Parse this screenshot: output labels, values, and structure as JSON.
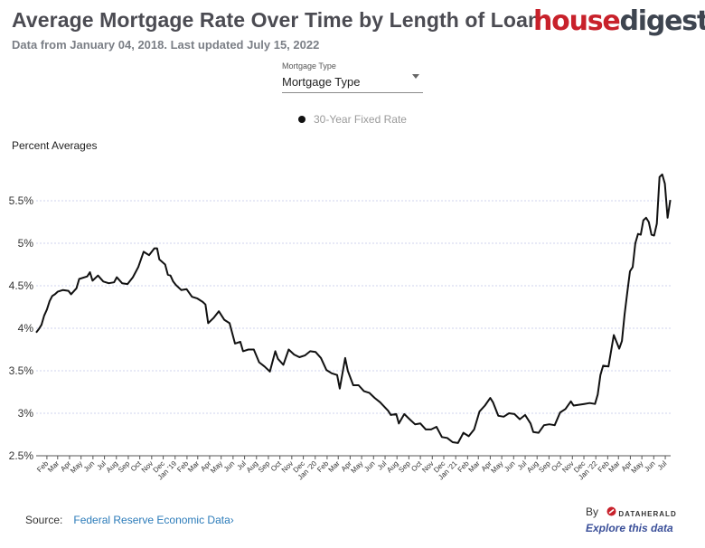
{
  "header": {
    "title": "Average Mortgage Rate Over Time by Length of Loan",
    "subtitle": "Data from January 04, 2018. Last updated July 15, 2022"
  },
  "brand": {
    "part1": "house",
    "part2": "digest",
    "colors": {
      "red": "#c8212b",
      "dark": "#3e4550"
    }
  },
  "dropdown": {
    "label": "Mortgage Type",
    "value": "Mortgage Type"
  },
  "footer": {
    "source_label": "Source:",
    "source_link": "Federal Reserve Economic Data",
    "source_chevron": "›",
    "by_label": "By",
    "by_brand": "DATAHERALD",
    "explore_link": "Explore this data"
  },
  "chart_data": {
    "type": "line",
    "title": "",
    "xlabel": "",
    "ylabel": "Percent Averages",
    "ylim": [
      2.5,
      5.75
    ],
    "yticks": [
      2.5,
      3,
      3.5,
      4,
      4.5,
      5,
      5.5
    ],
    "ytick_labels": [
      "2.5%",
      "3%",
      "3.5%",
      "4%",
      "4.5%",
      "5%",
      "5.5%"
    ],
    "grid": "horizontal dotted",
    "legend_position": "top-center",
    "xlim": [
      "2018-01-04",
      "2022-07-15"
    ],
    "x_tick_dates": [
      "2018-02-01",
      "2018-03-01",
      "2018-04-01",
      "2018-05-01",
      "2018-06-01",
      "2018-07-01",
      "2018-08-01",
      "2018-09-01",
      "2018-10-01",
      "2018-11-01",
      "2018-12-01",
      "2019-01-01",
      "2019-02-01",
      "2019-03-01",
      "2019-04-01",
      "2019-05-01",
      "2019-06-01",
      "2019-07-01",
      "2019-08-01",
      "2019-09-01",
      "2019-10-01",
      "2019-11-01",
      "2019-12-01",
      "2020-01-01",
      "2020-02-01",
      "2020-03-01",
      "2020-04-01",
      "2020-05-01",
      "2020-06-01",
      "2020-07-01",
      "2020-08-01",
      "2020-09-01",
      "2020-10-01",
      "2020-11-01",
      "2020-12-01",
      "2021-01-01",
      "2021-02-01",
      "2021-03-01",
      "2021-04-01",
      "2021-05-01",
      "2021-06-01",
      "2021-07-01",
      "2021-08-01",
      "2021-09-01",
      "2021-10-01",
      "2021-11-01",
      "2021-12-01",
      "2022-01-01",
      "2022-02-01",
      "2022-03-01",
      "2022-04-01",
      "2022-05-01",
      "2022-06-01",
      "2022-07-01"
    ],
    "x_tick_labels": [
      "Feb",
      "Mar",
      "Apr",
      "May",
      "Jun",
      "Jul",
      "Aug",
      "Sep",
      "Oct",
      "Nov",
      "Dec",
      "Jan '19",
      "Feb",
      "Mar",
      "Apr",
      "May",
      "Jun",
      "Jul",
      "Aug",
      "Sep",
      "Oct",
      "Nov",
      "Dec",
      "Jan '20",
      "Feb",
      "Mar",
      "Apr",
      "May",
      "Jun",
      "Jul",
      "Aug",
      "Sep",
      "Oct",
      "Nov",
      "Dec",
      "Jan '21",
      "Feb",
      "Mar",
      "Apr",
      "May",
      "Jun",
      "Jul",
      "Aug",
      "Sep",
      "Oct",
      "Nov",
      "Dec",
      "Jan '22",
      "Feb",
      "Mar",
      "Apr",
      "May",
      "Jun",
      "Jul"
    ],
    "series": [
      {
        "name": "30-Year Fixed Rate",
        "color": "#111111",
        "points": [
          [
            "2018-01-04",
            3.95
          ],
          [
            "2018-01-11",
            3.99
          ],
          [
            "2018-01-18",
            4.04
          ],
          [
            "2018-01-25",
            4.15
          ],
          [
            "2018-02-01",
            4.22
          ],
          [
            "2018-02-08",
            4.32
          ],
          [
            "2018-02-15",
            4.38
          ],
          [
            "2018-02-22",
            4.4
          ],
          [
            "2018-03-01",
            4.43
          ],
          [
            "2018-03-15",
            4.45
          ],
          [
            "2018-03-29",
            4.44
          ],
          [
            "2018-04-05",
            4.4
          ],
          [
            "2018-04-19",
            4.47
          ],
          [
            "2018-04-26",
            4.58
          ],
          [
            "2018-05-17",
            4.61
          ],
          [
            "2018-05-24",
            4.66
          ],
          [
            "2018-05-31",
            4.56
          ],
          [
            "2018-06-14",
            4.62
          ],
          [
            "2018-06-28",
            4.55
          ],
          [
            "2018-07-12",
            4.53
          ],
          [
            "2018-07-26",
            4.54
          ],
          [
            "2018-08-02",
            4.6
          ],
          [
            "2018-08-16",
            4.53
          ],
          [
            "2018-08-30",
            4.52
          ],
          [
            "2018-09-13",
            4.6
          ],
          [
            "2018-09-27",
            4.72
          ],
          [
            "2018-10-11",
            4.9
          ],
          [
            "2018-10-25",
            4.86
          ],
          [
            "2018-11-08",
            4.94
          ],
          [
            "2018-11-15",
            4.94
          ],
          [
            "2018-11-21",
            4.81
          ],
          [
            "2018-12-06",
            4.75
          ],
          [
            "2018-12-13",
            4.63
          ],
          [
            "2018-12-20",
            4.62
          ],
          [
            "2018-12-27",
            4.55
          ],
          [
            "2019-01-03",
            4.51
          ],
          [
            "2019-01-17",
            4.45
          ],
          [
            "2019-01-31",
            4.46
          ],
          [
            "2019-02-14",
            4.37
          ],
          [
            "2019-02-28",
            4.35
          ],
          [
            "2019-03-14",
            4.31
          ],
          [
            "2019-03-21",
            4.28
          ],
          [
            "2019-03-28",
            4.06
          ],
          [
            "2019-04-11",
            4.12
          ],
          [
            "2019-04-25",
            4.2
          ],
          [
            "2019-05-09",
            4.1
          ],
          [
            "2019-05-23",
            4.06
          ],
          [
            "2019-06-06",
            3.82
          ],
          [
            "2019-06-20",
            3.84
          ],
          [
            "2019-06-27",
            3.73
          ],
          [
            "2019-07-11",
            3.75
          ],
          [
            "2019-07-25",
            3.75
          ],
          [
            "2019-08-08",
            3.6
          ],
          [
            "2019-08-22",
            3.55
          ],
          [
            "2019-09-05",
            3.49
          ],
          [
            "2019-09-19",
            3.73
          ],
          [
            "2019-09-26",
            3.64
          ],
          [
            "2019-10-10",
            3.57
          ],
          [
            "2019-10-24",
            3.75
          ],
          [
            "2019-11-07",
            3.69
          ],
          [
            "2019-11-21",
            3.66
          ],
          [
            "2019-12-05",
            3.68
          ],
          [
            "2019-12-19",
            3.73
          ],
          [
            "2020-01-02",
            3.72
          ],
          [
            "2020-01-16",
            3.65
          ],
          [
            "2020-01-30",
            3.51
          ],
          [
            "2020-02-13",
            3.47
          ],
          [
            "2020-02-27",
            3.45
          ],
          [
            "2020-03-05",
            3.29
          ],
          [
            "2020-03-19",
            3.65
          ],
          [
            "2020-03-26",
            3.5
          ],
          [
            "2020-04-09",
            3.33
          ],
          [
            "2020-04-23",
            3.33
          ],
          [
            "2020-05-07",
            3.26
          ],
          [
            "2020-05-21",
            3.24
          ],
          [
            "2020-06-04",
            3.18
          ],
          [
            "2020-06-18",
            3.13
          ],
          [
            "2020-07-09",
            3.03
          ],
          [
            "2020-07-16",
            2.98
          ],
          [
            "2020-07-30",
            2.99
          ],
          [
            "2020-08-06",
            2.88
          ],
          [
            "2020-08-20",
            2.99
          ],
          [
            "2020-09-03",
            2.93
          ],
          [
            "2020-09-17",
            2.87
          ],
          [
            "2020-10-01",
            2.88
          ],
          [
            "2020-10-15",
            2.81
          ],
          [
            "2020-10-29",
            2.81
          ],
          [
            "2020-11-12",
            2.84
          ],
          [
            "2020-11-26",
            2.72
          ],
          [
            "2020-12-10",
            2.71
          ],
          [
            "2020-12-24",
            2.66
          ],
          [
            "2021-01-07",
            2.65
          ],
          [
            "2021-01-21",
            2.77
          ],
          [
            "2021-02-04",
            2.73
          ],
          [
            "2021-02-18",
            2.81
          ],
          [
            "2021-03-04",
            3.02
          ],
          [
            "2021-03-18",
            3.09
          ],
          [
            "2021-04-01",
            3.18
          ],
          [
            "2021-04-08",
            3.13
          ],
          [
            "2021-04-22",
            2.97
          ],
          [
            "2021-05-06",
            2.96
          ],
          [
            "2021-05-20",
            3.0
          ],
          [
            "2021-06-03",
            2.99
          ],
          [
            "2021-06-17",
            2.93
          ],
          [
            "2021-07-01",
            2.98
          ],
          [
            "2021-07-15",
            2.88
          ],
          [
            "2021-07-22",
            2.78
          ],
          [
            "2021-08-05",
            2.77
          ],
          [
            "2021-08-19",
            2.86
          ],
          [
            "2021-09-02",
            2.87
          ],
          [
            "2021-09-16",
            2.86
          ],
          [
            "2021-09-30",
            3.01
          ],
          [
            "2021-10-14",
            3.05
          ],
          [
            "2021-10-28",
            3.14
          ],
          [
            "2021-11-04",
            3.09
          ],
          [
            "2021-11-18",
            3.1
          ],
          [
            "2021-12-02",
            3.11
          ],
          [
            "2021-12-16",
            3.12
          ],
          [
            "2021-12-30",
            3.11
          ],
          [
            "2022-01-06",
            3.22
          ],
          [
            "2022-01-13",
            3.45
          ],
          [
            "2022-01-20",
            3.56
          ],
          [
            "2022-02-03",
            3.55
          ],
          [
            "2022-02-17",
            3.92
          ],
          [
            "2022-03-03",
            3.76
          ],
          [
            "2022-03-10",
            3.85
          ],
          [
            "2022-03-17",
            4.16
          ],
          [
            "2022-03-24",
            4.42
          ],
          [
            "2022-03-31",
            4.67
          ],
          [
            "2022-04-07",
            4.72
          ],
          [
            "2022-04-14",
            5.0
          ],
          [
            "2022-04-21",
            5.11
          ],
          [
            "2022-04-28",
            5.1
          ],
          [
            "2022-05-05",
            5.27
          ],
          [
            "2022-05-12",
            5.3
          ],
          [
            "2022-05-19",
            5.25
          ],
          [
            "2022-05-26",
            5.1
          ],
          [
            "2022-06-02",
            5.09
          ],
          [
            "2022-06-09",
            5.23
          ],
          [
            "2022-06-16",
            5.78
          ],
          [
            "2022-06-23",
            5.81
          ],
          [
            "2022-06-30",
            5.7
          ],
          [
            "2022-07-07",
            5.3
          ],
          [
            "2022-07-14",
            5.51
          ]
        ]
      }
    ]
  }
}
